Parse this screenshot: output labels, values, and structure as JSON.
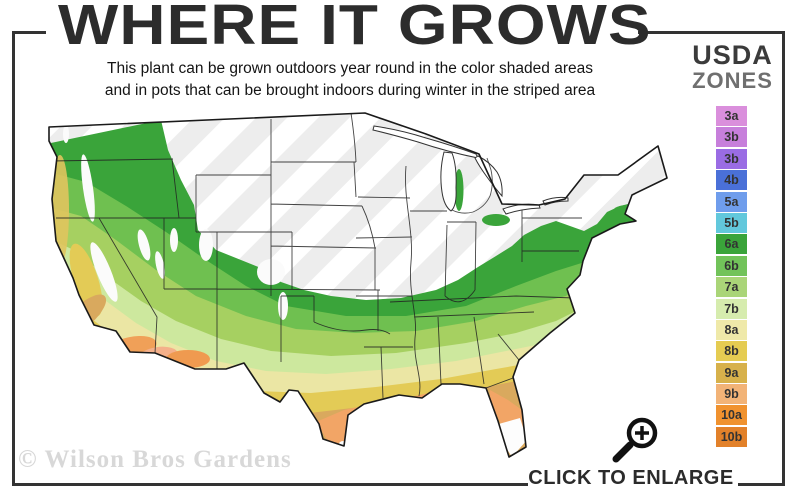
{
  "header": {
    "title": "WHERE IT GROWS",
    "subtitle_line1": "This plant can be grown outdoors year round in the color shaded areas",
    "subtitle_line2": "and in pots that can be brought indoors during winter in the striped area"
  },
  "legend": {
    "title_line1": "USDA",
    "title_line2": "ZONES",
    "zones": [
      {
        "label": "3a",
        "color": "#da8fdc"
      },
      {
        "label": "3b",
        "color": "#c77fdb"
      },
      {
        "label": "3b",
        "color": "#9a6ce4"
      },
      {
        "label": "4b",
        "color": "#4a70d8"
      },
      {
        "label": "5a",
        "color": "#6f9dec"
      },
      {
        "label": "5b",
        "color": "#62c8dc"
      },
      {
        "label": "6a",
        "color": "#3aa43a"
      },
      {
        "label": "6b",
        "color": "#72c35a"
      },
      {
        "label": "7a",
        "color": "#aad578"
      },
      {
        "label": "7b",
        "color": "#d6ecae"
      },
      {
        "label": "8a",
        "color": "#efe9a9"
      },
      {
        "label": "8b",
        "color": "#e5cc52"
      },
      {
        "label": "9a",
        "color": "#d7b14b"
      },
      {
        "label": "9b",
        "color": "#f2b377"
      },
      {
        "label": "10a",
        "color": "#f0922f"
      },
      {
        "label": "10b",
        "color": "#e2812a"
      }
    ]
  },
  "map": {
    "watermark": "© Wilson Bros Gardens",
    "outline_color": "#1a1a1a",
    "stripe_color": "#ededed",
    "shaded_base_color": "#3aa43a"
  },
  "footer": {
    "cta_label": "CLICK TO ENLARGE"
  },
  "frame": {
    "border_color": "#333333"
  }
}
